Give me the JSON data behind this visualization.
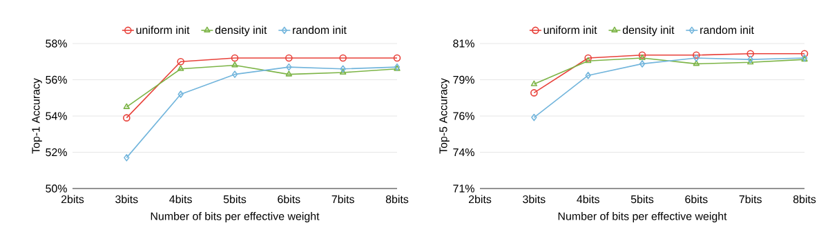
{
  "chart_data": [
    {
      "type": "line",
      "xlabel": "Number of bits per effective weight",
      "ylabel": "Top-1 Accuracy",
      "categories": [
        "2bits",
        "3bits",
        "4bits",
        "5bits",
        "6bits",
        "7bits",
        "8bits"
      ],
      "ylim": [
        50,
        58
      ],
      "yticks": [
        {
          "value": 50,
          "label": "50%"
        },
        {
          "value": 52,
          "label": "52%"
        },
        {
          "value": 54,
          "label": "54%"
        },
        {
          "value": 56,
          "label": "56%"
        },
        {
          "value": 58,
          "label": "58%"
        }
      ],
      "grid": "y",
      "legend": "top",
      "series": [
        {
          "name": "uniform init",
          "color": "#e8413a",
          "marker": "circle",
          "values": [
            null,
            53.9,
            57.0,
            57.2,
            57.2,
            57.2,
            57.2
          ]
        },
        {
          "name": "density init",
          "color": "#7cb446",
          "marker": "triangle",
          "values": [
            null,
            54.5,
            56.6,
            56.8,
            56.3,
            56.4,
            56.6
          ]
        },
        {
          "name": "random init",
          "color": "#72b5dc",
          "marker": "diamond",
          "values": [
            null,
            51.7,
            55.2,
            56.3,
            56.7,
            56.6,
            56.7
          ]
        }
      ]
    },
    {
      "type": "line",
      "xlabel": "Number of bits per effective weight",
      "ylabel": "Top-5 Accuracy",
      "categories": [
        "2bits",
        "3bits",
        "4bits",
        "5bits",
        "6bits",
        "7bits",
        "8bits"
      ],
      "ylim": [
        71,
        81
      ],
      "yticks": [
        {
          "value": 71,
          "label": "71%"
        },
        {
          "value": 73.5,
          "label": "74%"
        },
        {
          "value": 76,
          "label": "76%"
        },
        {
          "value": 78.5,
          "label": "79%"
        },
        {
          "value": 81,
          "label": "81%"
        }
      ],
      "grid": "y",
      "legend": "top",
      "series": [
        {
          "name": "uniform init",
          "color": "#e8413a",
          "marker": "circle",
          "values": [
            null,
            77.6,
            80.0,
            80.2,
            80.2,
            80.3,
            80.3
          ]
        },
        {
          "name": "density init",
          "color": "#7cb446",
          "marker": "triangle",
          "values": [
            null,
            78.2,
            79.8,
            80.0,
            79.6,
            79.7,
            79.9
          ]
        },
        {
          "name": "random init",
          "color": "#72b5dc",
          "marker": "diamond",
          "values": [
            null,
            75.9,
            78.8,
            79.6,
            80.0,
            79.9,
            80.0
          ]
        }
      ]
    }
  ]
}
